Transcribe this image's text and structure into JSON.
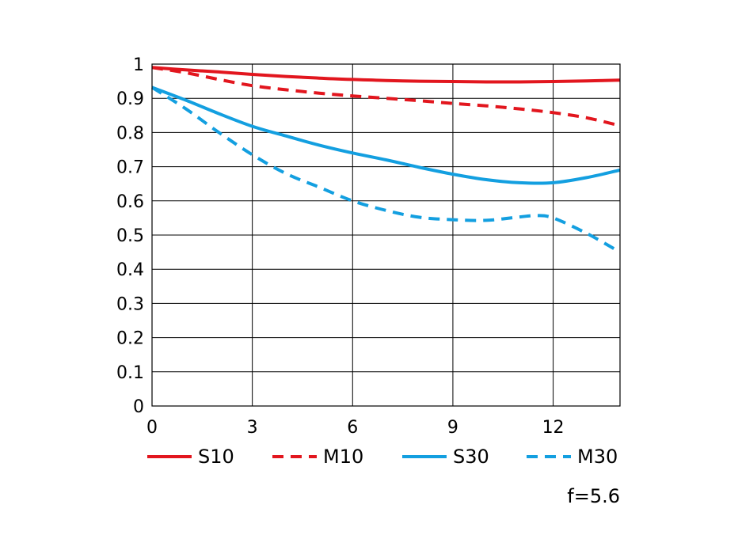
{
  "chart_data": {
    "type": "line",
    "title": "",
    "xlabel": "",
    "ylabel": "",
    "xlim": [
      0,
      14
    ],
    "ylim": [
      0,
      1
    ],
    "xticks": [
      0,
      3,
      6,
      9,
      12
    ],
    "xtick_labels": [
      "0",
      "3",
      "6",
      "9",
      "12"
    ],
    "yticks": [
      0,
      0.1,
      0.2,
      0.3,
      0.4,
      0.5,
      0.6,
      0.7,
      0.8,
      0.9,
      1
    ],
    "ytick_labels": [
      "0",
      "0.1",
      "0.2",
      "0.3",
      "0.4",
      "0.5",
      "0.6",
      "0.7",
      "0.8",
      "0.9",
      "1"
    ],
    "grid": true,
    "legend_position": "bottom",
    "series": [
      {
        "name": "S10",
        "color": "#e2161e",
        "style": "solid",
        "x": [
          0,
          1,
          2,
          3,
          4,
          5,
          6,
          7,
          8,
          9,
          10,
          11,
          12,
          13,
          14
        ],
        "y": [
          0.99,
          0.983,
          0.977,
          0.97,
          0.964,
          0.959,
          0.955,
          0.952,
          0.95,
          0.949,
          0.948,
          0.948,
          0.949,
          0.951,
          0.953
        ]
      },
      {
        "name": "M10",
        "color": "#e2161e",
        "style": "dashed",
        "x": [
          0,
          1,
          2,
          3,
          4,
          5,
          6,
          7,
          8,
          9,
          10,
          11,
          12,
          13,
          14
        ],
        "y": [
          0.99,
          0.975,
          0.955,
          0.937,
          0.925,
          0.915,
          0.907,
          0.9,
          0.893,
          0.885,
          0.878,
          0.869,
          0.858,
          0.843,
          0.82
        ]
      },
      {
        "name": "S30",
        "color": "#139fe0",
        "style": "solid",
        "x": [
          0,
          1,
          2,
          3,
          4,
          5,
          6,
          7,
          8,
          9,
          10,
          11,
          12,
          13,
          14
        ],
        "y": [
          0.932,
          0.895,
          0.855,
          0.818,
          0.79,
          0.763,
          0.74,
          0.72,
          0.698,
          0.678,
          0.662,
          0.653,
          0.653,
          0.668,
          0.69
        ]
      },
      {
        "name": "M30",
        "color": "#139fe0",
        "style": "dashed",
        "x": [
          0,
          1,
          2,
          3,
          4,
          5,
          6,
          7,
          8,
          9,
          10,
          11,
          11.5,
          12,
          13,
          14
        ],
        "y": [
          0.932,
          0.87,
          0.8,
          0.735,
          0.68,
          0.64,
          0.6,
          0.572,
          0.552,
          0.545,
          0.543,
          0.553,
          0.557,
          0.55,
          0.505,
          0.45
        ]
      }
    ],
    "annotation": "f=5.6"
  }
}
